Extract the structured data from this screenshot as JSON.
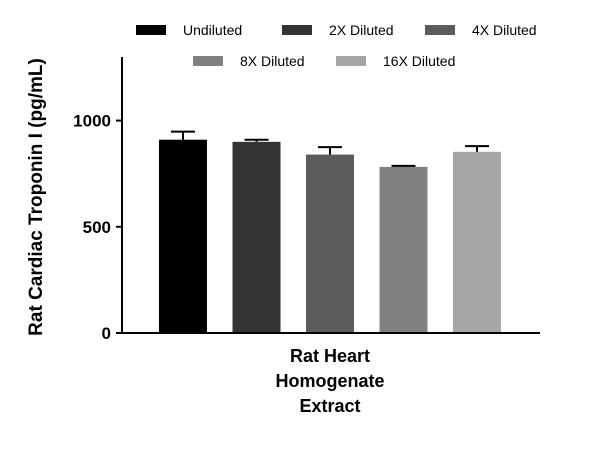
{
  "chart_data": {
    "type": "bar",
    "title": "",
    "xlabel": "",
    "ylabel": "Rat Cardiac Troponin I (pg/mL)",
    "ylim": [
      0,
      1300
    ],
    "yticks": [
      0,
      500,
      1000
    ],
    "category": [
      "Rat Heart",
      "Homogenate",
      "Extract"
    ],
    "legend_position": "top",
    "series": [
      {
        "name": "Undiluted",
        "value": 910,
        "error": 38,
        "color": "#000000"
      },
      {
        "name": "2X Diluted",
        "value": 900,
        "error": 10,
        "color": "#333333"
      },
      {
        "name": "4X Diluted",
        "value": 840,
        "error": 35,
        "color": "#5c5c5c"
      },
      {
        "name": "8X Diluted",
        "value": 782,
        "error": 5,
        "color": "#808080"
      },
      {
        "name": "16X Diluted",
        "value": 853,
        "error": 27,
        "color": "#a6a6a8"
      }
    ]
  }
}
